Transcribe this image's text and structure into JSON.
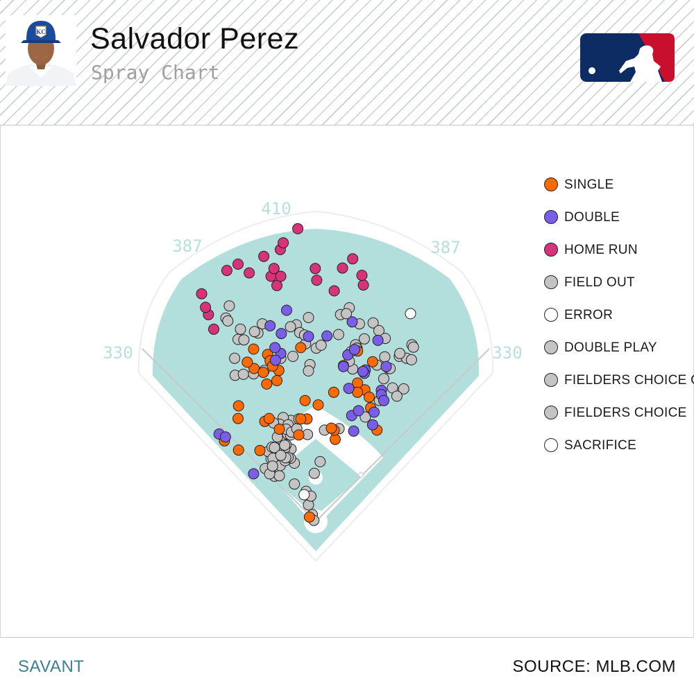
{
  "header": {
    "player_name": "Salvador Perez",
    "subtitle": "Spray Chart"
  },
  "colors": {
    "field": "#b2dfdb",
    "single": "#ff6a00",
    "double": "#7b5ee8",
    "home_run": "#d6337a",
    "field_out": "#c4c4c4",
    "error": "#ffffff",
    "sacrifice": "#ffffff"
  },
  "chart_data": {
    "type": "scatter",
    "title": "Spray Chart",
    "distance_labels": [
      "330",
      "387",
      "410",
      "387",
      "330"
    ],
    "legend": [
      {
        "label": "SINGLE",
        "color": "#ff6a00"
      },
      {
        "label": "DOUBLE",
        "color": "#7b5ee8"
      },
      {
        "label": "HOME RUN",
        "color": "#d6337a"
      },
      {
        "label": "FIELD OUT",
        "color": "#c4c4c4"
      },
      {
        "label": "ERROR",
        "color": "#ffffff"
      },
      {
        "label": "DOUBLE PLAY",
        "color": "#c4c4c4"
      },
      {
        "label": "FIELDERS CHOICE OUT",
        "color": "#c4c4c4"
      },
      {
        "label": "FIELDERS CHOICE",
        "color": "#c4c4c4"
      },
      {
        "label": "SACRIFICE",
        "color": "#ffffff"
      }
    ],
    "series": [
      {
        "name": "SINGLE",
        "color": "#ff6a00",
        "points": [
          [
            -128,
            355
          ],
          [
            -127,
            315
          ],
          [
            -141,
            328
          ],
          [
            -99,
            344
          ],
          [
            -94,
            331
          ],
          [
            -76,
            311
          ],
          [
            -89,
            320
          ],
          [
            -80,
            290
          ],
          [
            -105,
            206
          ],
          [
            -159,
            238
          ],
          [
            -159,
            147
          ],
          [
            -160,
            212
          ],
          [
            -188,
            166
          ],
          [
            -101,
            283
          ],
          [
            -31,
            358
          ],
          [
            -22,
            249
          ],
          [
            5,
            240
          ],
          [
            40,
            169
          ],
          [
            38,
            188
          ],
          [
            32,
            192
          ],
          [
            -18,
            211
          ],
          [
            -35,
            178
          ],
          [
            -96,
            212
          ],
          [
            -115,
            146
          ],
          [
            -75,
            190
          ],
          [
            -31,
            211
          ],
          [
            -108,
            307
          ],
          [
            -13,
            9
          ],
          [
            57,
            321
          ],
          [
            37,
            266
          ],
          [
            101,
            271
          ],
          [
            117,
            329
          ],
          [
            86,
            351
          ],
          [
            126,
            188
          ],
          [
            110,
            256
          ],
          [
            86,
            285
          ],
          [
            113,
            234
          ],
          [
            86,
            266
          ]
        ]
      },
      {
        "name": "DOUBLE",
        "color": "#7b5ee8",
        "points": [
          [
            -72,
            346
          ],
          [
            -71,
            387
          ],
          [
            -94,
            403
          ],
          [
            -83,
            332
          ],
          [
            -84,
            358
          ],
          [
            -199,
            180
          ],
          [
            -186,
            174
          ],
          [
            -128,
            98
          ],
          [
            -15,
            381
          ],
          [
            68,
            274
          ],
          [
            102,
            312
          ],
          [
            100,
            305
          ],
          [
            145,
            319
          ],
          [
            135,
            270
          ],
          [
            128,
            373
          ],
          [
            57,
            319
          ],
          [
            75,
            411
          ],
          [
            23,
            382
          ],
          [
            -60,
            435
          ],
          [
            135,
            261
          ],
          [
            74,
            218
          ],
          [
            66,
            343
          ],
          [
            80,
            354
          ],
          [
            117,
            199
          ],
          [
            97,
            309
          ],
          [
            78,
            186
          ],
          [
            88,
            228
          ],
          [
            120,
            225
          ],
          [
            140,
            249
          ]
        ]
      },
      {
        "name": "HOME RUN",
        "color": "#d6337a",
        "points": [
          [
            -210,
            396
          ],
          [
            -221,
            426
          ],
          [
            -235,
            469
          ],
          [
            -227,
            441
          ],
          [
            -183,
            517
          ],
          [
            -160,
            530
          ],
          [
            -137,
            512
          ],
          [
            -107,
            546
          ],
          [
            -92,
            505
          ],
          [
            -80,
            486
          ],
          [
            -72,
            505
          ],
          [
            -86,
            521
          ],
          [
            55,
            522
          ],
          [
            -1,
            521
          ],
          [
            -73,
            560
          ],
          [
            -37,
            603
          ],
          [
            -67,
            574
          ],
          [
            98,
            487
          ],
          [
            95,
            507
          ],
          [
            76,
            541
          ],
          [
            38,
            475
          ],
          [
            2,
            497
          ]
        ]
      },
      {
        "name": "FIELD OUT",
        "color": "#c4c4c4",
        "points": [
          [
            -185,
            419
          ],
          [
            -178,
            444
          ],
          [
            -181,
            413
          ],
          [
            -160,
            375
          ],
          [
            -148,
            374
          ],
          [
            -110,
            407
          ],
          [
            -119,
            388
          ],
          [
            -128,
            304
          ],
          [
            -126,
            391
          ],
          [
            -155,
            396
          ],
          [
            -166,
            301
          ],
          [
            -149,
            303
          ],
          [
            -167,
            336
          ],
          [
            -106,
            311
          ],
          [
            -47,
            340
          ],
          [
            -21,
            366
          ],
          [
            -40,
            405
          ],
          [
            -33,
            389
          ],
          [
            -52,
            401
          ],
          [
            -72,
            336
          ],
          [
            -15,
            420
          ],
          [
            -23,
            384
          ],
          [
            -12,
            323
          ],
          [
            1,
            357
          ],
          [
            11,
            363
          ],
          [
            -15,
            310
          ],
          [
            47,
            385
          ],
          [
            69,
            440
          ],
          [
            51,
            426
          ],
          [
            73,
            350
          ],
          [
            63,
            428
          ],
          [
            82,
            364
          ],
          [
            85,
            357
          ],
          [
            76,
            314
          ],
          [
            69,
            330
          ],
          [
            118,
            409
          ],
          [
            84,
            357
          ],
          [
            100,
            376
          ],
          [
            130,
            393
          ],
          [
            90,
            407
          ],
          [
            143,
            377
          ],
          [
            198,
            364
          ],
          [
            142,
            339
          ],
          [
            172,
            340
          ],
          [
            187,
            336
          ],
          [
            201,
            359
          ],
          [
            150,
            315
          ],
          [
            197,
            333
          ],
          [
            153,
            315
          ],
          [
            173,
            346
          ],
          [
            126,
            322
          ],
          [
            140,
            294
          ],
          [
            158,
            275
          ],
          [
            181,
            273
          ],
          [
            167,
            258
          ],
          [
            131,
            249
          ],
          [
            102,
            215
          ],
          [
            48,
            191
          ],
          [
            18,
            188
          ],
          [
            -17,
            179
          ],
          [
            9,
            123
          ],
          [
            -3,
            99
          ],
          [
            -44,
            120
          ],
          [
            -51,
            149
          ],
          [
            -52,
            130
          ],
          [
            -70,
            163
          ],
          [
            -61,
            158
          ],
          [
            -58,
            180
          ],
          [
            -82,
            151
          ],
          [
            -92,
            129
          ],
          [
            -98,
            144
          ],
          [
            -104,
            109
          ],
          [
            -79,
            121
          ],
          [
            -85,
            93
          ],
          [
            -88,
            130
          ],
          [
            -72,
            142
          ],
          [
            -90,
            153
          ],
          [
            -75,
            94
          ],
          [
            -64,
            150
          ],
          [
            -52,
            178
          ],
          [
            -51,
            208
          ],
          [
            -67,
            214
          ],
          [
            -74,
            200
          ],
          [
            -57,
            199
          ],
          [
            -61,
            190
          ],
          [
            -87,
            203
          ],
          [
            -79,
            174
          ],
          [
            -64,
            157
          ],
          [
            -44,
            77
          ],
          [
            -73,
            115
          ],
          [
            -85,
            152
          ],
          [
            -15,
            34
          ],
          [
            -20,
            62
          ],
          [
            -10,
            52
          ],
          [
            -7,
            14
          ],
          [
            -4,
            2
          ],
          [
            -63,
            125
          ],
          [
            -57,
            132
          ],
          [
            -50,
            184
          ],
          [
            -39,
            191
          ],
          [
            -35,
            211
          ],
          [
            -62,
            131
          ],
          [
            -72,
            136
          ],
          [
            -95,
            98
          ],
          [
            -89,
            114
          ]
        ]
      },
      {
        "name": "ERROR",
        "color": "#ffffff",
        "points": [
          [
            -24,
            55
          ],
          [
            195,
            428
          ]
        ]
      },
      {
        "name": "SACRIFICE",
        "color": "#ffffff",
        "points": []
      }
    ]
  },
  "footer": {
    "left": "SAVANT",
    "right": "SOURCE: MLB.COM"
  }
}
